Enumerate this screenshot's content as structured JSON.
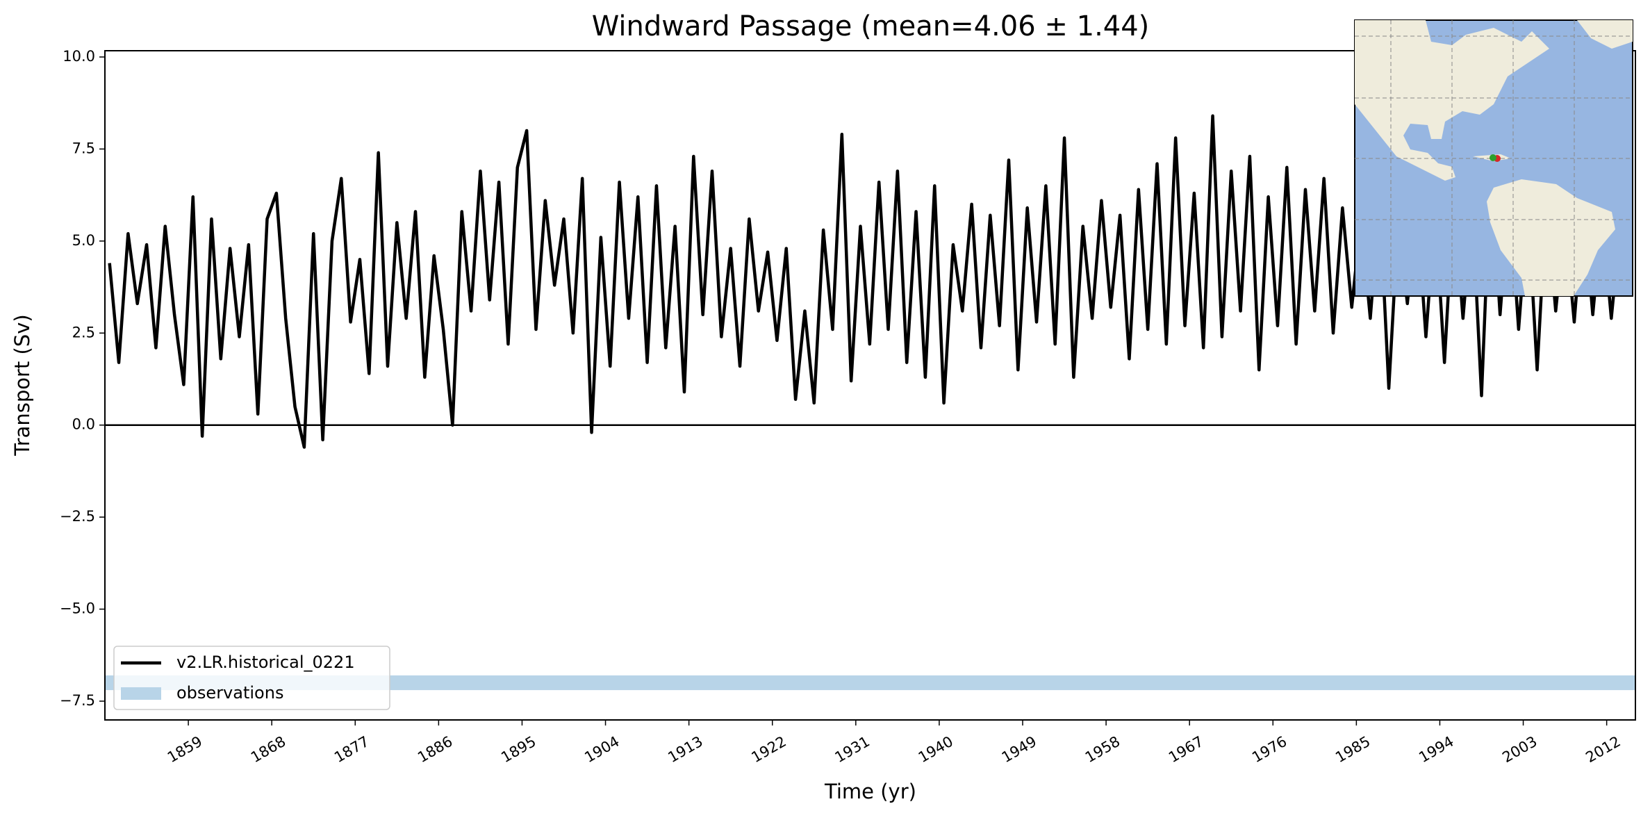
{
  "chart_data": {
    "type": "line",
    "title": "Windward Passage (mean=4.06 ± 1.44)",
    "x_label": "Time (yr)",
    "y_label": "Transport (Sv)",
    "x": [
      1850.5,
      1851.5,
      1852.5,
      1853.5,
      1854.5,
      1855.5,
      1856.5,
      1857.5,
      1858.5,
      1859.5,
      1860.5,
      1861.5,
      1862.5,
      1863.5,
      1864.5,
      1865.5,
      1866.5,
      1867.5,
      1868.5,
      1869.5,
      1870.5,
      1871.5,
      1872.5,
      1873.5,
      1874.5,
      1875.5,
      1876.5,
      1877.5,
      1878.5,
      1879.5,
      1880.5,
      1881.5,
      1882.5,
      1883.5,
      1884.5,
      1885.5,
      1886.5,
      1887.5,
      1888.5,
      1889.5,
      1890.5,
      1891.5,
      1892.5,
      1893.5,
      1894.5,
      1895.5,
      1896.5,
      1897.5,
      1898.5,
      1899.5,
      1900.5,
      1901.5,
      1902.5,
      1903.5,
      1904.5,
      1905.5,
      1906.5,
      1907.5,
      1908.5,
      1909.5,
      1910.5,
      1911.5,
      1912.5,
      1913.5,
      1914.5,
      1915.5,
      1916.5,
      1917.5,
      1918.5,
      1919.5,
      1920.5,
      1921.5,
      1922.5,
      1923.5,
      1924.5,
      1925.5,
      1926.5,
      1927.5,
      1928.5,
      1929.5,
      1930.5,
      1931.5,
      1932.5,
      1933.5,
      1934.5,
      1935.5,
      1936.5,
      1937.5,
      1938.5,
      1939.5,
      1940.5,
      1941.5,
      1942.5,
      1943.5,
      1944.5,
      1945.5,
      1946.5,
      1947.5,
      1948.5,
      1949.5,
      1950.5,
      1951.5,
      1952.5,
      1953.5,
      1954.5,
      1955.5,
      1956.5,
      1957.5,
      1958.5,
      1959.5,
      1960.5,
      1961.5,
      1962.5,
      1963.5,
      1964.5,
      1965.5,
      1966.5,
      1967.5,
      1968.5,
      1969.5,
      1970.5,
      1971.5,
      1972.5,
      1973.5,
      1974.5,
      1975.5,
      1976.5,
      1977.5,
      1978.5,
      1979.5,
      1980.5,
      1981.5,
      1982.5,
      1983.5,
      1984.5,
      1985.5,
      1986.5,
      1987.5,
      1988.5,
      1989.5,
      1990.5,
      1991.5,
      1992.5,
      1993.5,
      1994.5,
      1995.5,
      1996.5,
      1997.5,
      1998.5,
      1999.5,
      2000.5,
      2001.5,
      2002.5,
      2003.5,
      2004.5,
      2005.5,
      2006.5,
      2007.5,
      2008.5,
      2009.5,
      2010.5,
      2011.5,
      2012.5,
      2013.5,
      2014.5
    ],
    "series": [
      {
        "name": "v2.LR.historical_0221",
        "color": "#000000",
        "values": [
          4.4,
          1.7,
          5.2,
          3.3,
          4.9,
          2.1,
          5.4,
          3.0,
          1.1,
          6.2,
          -0.3,
          5.6,
          1.8,
          4.8,
          2.4,
          4.9,
          0.3,
          5.6,
          6.3,
          2.9,
          0.5,
          -0.6,
          5.2,
          -0.4,
          5.0,
          6.7,
          2.8,
          4.5,
          1.4,
          7.4,
          1.6,
          5.5,
          2.9,
          5.8,
          1.3,
          4.6,
          2.6,
          0.0,
          5.8,
          3.1,
          6.9,
          3.4,
          6.6,
          2.2,
          7.0,
          8.0,
          2.6,
          6.1,
          3.8,
          5.6,
          2.5,
          6.7,
          -0.2,
          5.1,
          1.6,
          6.6,
          2.9,
          6.2,
          1.7,
          6.5,
          2.1,
          5.4,
          0.9,
          7.3,
          3.0,
          6.9,
          2.4,
          4.8,
          1.6,
          5.6,
          3.1,
          4.7,
          2.3,
          4.8,
          0.7,
          3.1,
          0.6,
          5.3,
          2.6,
          7.9,
          1.2,
          5.4,
          2.2,
          6.6,
          2.6,
          6.9,
          1.7,
          5.8,
          1.3,
          6.5,
          0.6,
          4.9,
          3.1,
          6.0,
          2.1,
          5.7,
          2.7,
          7.2,
          1.5,
          5.9,
          2.8,
          6.5,
          2.2,
          7.8,
          1.3,
          5.4,
          2.9,
          6.1,
          3.2,
          5.7,
          1.8,
          6.4,
          2.6,
          7.1,
          2.2,
          7.8,
          2.7,
          6.3,
          2.1,
          8.4,
          2.4,
          6.9,
          3.1,
          7.3,
          1.5,
          6.2,
          2.7,
          7.0,
          2.2,
          6.4,
          3.1,
          6.7,
          2.5,
          5.9,
          3.2,
          5.6,
          2.9,
          6.1,
          1.0,
          5.5,
          3.3,
          6.0,
          2.4,
          5.8,
          1.7,
          6.2,
          2.9,
          5.9,
          0.8,
          7.0,
          3.0,
          6.3,
          2.6,
          5.9,
          1.5,
          6.1,
          3.1,
          5.6,
          2.8,
          6.0,
          3.0,
          5.7,
          2.9,
          5.5,
          8.1
        ]
      }
    ],
    "bands": [
      {
        "name": "observations",
        "color": "#b8d4e8",
        "low": -7.2,
        "high": -6.8
      }
    ],
    "zero_line": 0,
    "xlim": [
      1850,
      2015.1
    ],
    "xticks": [
      1859,
      1868,
      1877,
      1886,
      1895,
      1904,
      1913,
      1922,
      1931,
      1940,
      1949,
      1958,
      1967,
      1976,
      1985,
      1994,
      2003,
      2012
    ],
    "ylim": [
      -8.01,
      10.17
    ],
    "yticks": [
      {
        "value": -7.5,
        "label": "−7.5"
      },
      {
        "value": -5,
        "label": "−5.0"
      },
      {
        "value": -2.5,
        "label": "−2.5"
      },
      {
        "value": 0,
        "label": "0.0"
      },
      {
        "value": 2.5,
        "label": "2.5"
      },
      {
        "value": 5,
        "label": "5.0"
      },
      {
        "value": 7.5,
        "label": "7.5"
      },
      {
        "value": 10,
        "label": "10.0"
      }
    ],
    "legend": "lower left"
  }
}
